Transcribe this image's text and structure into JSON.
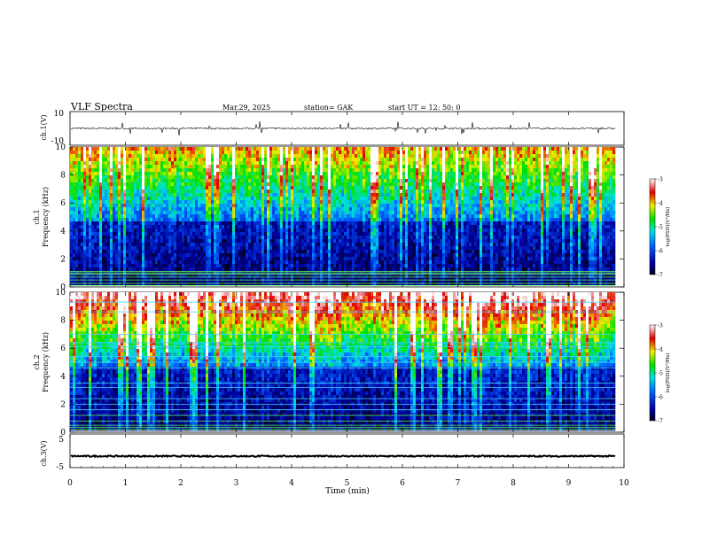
{
  "header": {
    "title": "VLF  Spectra",
    "date": "Mar.29, 2025",
    "station": "station= GAK",
    "start": "start  UT =   12: 50: 0"
  },
  "chart_data": [
    {
      "type": "line",
      "panel": "ch1-waveform",
      "ylabel": "ch.1(V)",
      "ylim": [
        -10,
        10
      ],
      "y_ticks": [
        "10",
        "-10"
      ],
      "baseline": 0,
      "noise_amplitude": 1.0,
      "line_color": "#000000"
    },
    {
      "type": "heatmap",
      "panel": "ch1-spectrogram",
      "ylabel": "ch.1\nFrequency  (kHz)",
      "ylim": [
        0,
        10
      ],
      "y_ticks": [
        "0",
        "2",
        "4",
        "6",
        "8",
        "10"
      ],
      "colorbar": {
        "label": "log(PSD)(V²/Hz)",
        "range": [
          -7,
          -3
        ],
        "ticks": [
          "-3",
          "-4",
          "-5",
          "-6",
          "-7"
        ]
      },
      "horizontal_lines_khz": [
        0.1,
        0.25,
        0.5,
        0.7,
        0.9,
        1.0,
        1.1
      ],
      "character": "broadband impulsive emissions, strongest above 4 kHz"
    },
    {
      "type": "heatmap",
      "panel": "ch2-spectrogram",
      "ylabel": "ch.2\nFrequency  (kHz)",
      "ylim": [
        0,
        10
      ],
      "y_ticks": [
        "0",
        "2",
        "4",
        "6",
        "8",
        "10"
      ],
      "colorbar": {
        "label": "log(PSD)(V²/Hz)",
        "range": [
          -7,
          -3
        ],
        "ticks": [
          "-3",
          "-4",
          "-5",
          "-6",
          "-7"
        ]
      },
      "horizontal_lines_khz": [
        0.2,
        0.35,
        0.5,
        0.8,
        1.2,
        1.6,
        2.0,
        2.4,
        3.2,
        3.5,
        4.6,
        5.0,
        5.4,
        6.1,
        6.4,
        7.0,
        8.6,
        9.3
      ],
      "character": "strong broadband emissions with many line interferences"
    },
    {
      "type": "line",
      "panel": "ch3-waveform",
      "ylabel": "ch.3(V)",
      "ylim": [
        -5,
        5
      ],
      "y_ticks": [
        "5",
        "-5"
      ],
      "baseline": -1.6,
      "noise_amplitude": 0.4,
      "line_color": "#000000"
    }
  ],
  "time_axis": {
    "xlabel": "Time  (min)",
    "xlim": [
      0,
      10
    ],
    "data_end_min": 9.85,
    "ticks": [
      "0",
      "1",
      "2",
      "3",
      "4",
      "5",
      "6",
      "7",
      "8",
      "9",
      "10"
    ]
  }
}
